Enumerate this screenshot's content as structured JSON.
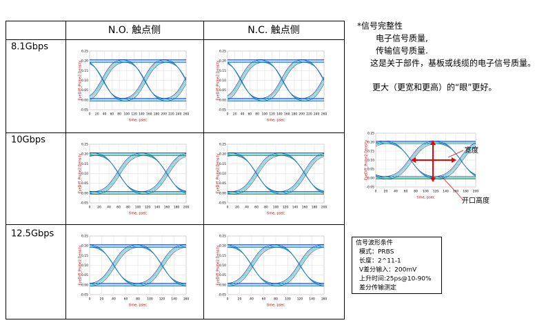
{
  "table": {
    "header": [
      "",
      "N.O. 触点侧",
      "N.C. 触点侧"
    ],
    "plot_ylabel": "EyeDiff_Probe2.Density",
    "plot_xlabel": "time, psec",
    "rows": [
      {
        "label": "8.1Gbps",
        "yticks": [
          "0.25",
          "0.20",
          "0.15",
          "0.10",
          "0.05",
          "0.00",
          "-0.05"
        ],
        "xticks": [
          "0",
          "20",
          "40",
          "60",
          "80",
          "100",
          "120",
          "140",
          "160",
          "180",
          "200",
          "220",
          "240",
          "260"
        ]
      },
      {
        "label": "10Gbps",
        "yticks": [
          "0.25",
          "0.20",
          "0.15",
          "0.10",
          "0.05",
          "0.00",
          "-0.05"
        ],
        "xticks": [
          "0",
          "20",
          "40",
          "60",
          "80",
          "100",
          "120",
          "140",
          "160",
          "180",
          "200"
        ]
      },
      {
        "label": "12.5Gbps",
        "yticks": [
          "0.25",
          "0.20",
          "0.15",
          "0.10",
          "0.05",
          "0.00",
          "-0.05"
        ],
        "xticks": [
          "0",
          "20",
          "40",
          "60",
          "80",
          "100",
          "120",
          "140",
          "160"
        ]
      }
    ]
  },
  "notes": {
    "title": "*信号完整性",
    "lines": [
      "电子信号质量,",
      "传输信号质量.",
      "这是关于部件，基板或线缆的电子信号质量。"
    ],
    "conclusion": "更大（更宽和更高）的“眼”更好。"
  },
  "example": {
    "yticks": [
      "0.25",
      "0.20",
      "0.15",
      "0.10",
      "0.05",
      "0.00",
      "-0.05"
    ],
    "xticks": [
      "0",
      "20",
      "40",
      "60",
      "80",
      "100",
      "120",
      "140",
      "160",
      "180",
      "200"
    ],
    "width_label": "宽度",
    "height_label": "开口高度"
  },
  "conditions": [
    "信号波形条件",
    "模式：PRBS",
    "长度：2^11-1",
    "V差分输入：200mV",
    "上升时间:25ps@10-90%",
    "差分传输测定"
  ]
}
